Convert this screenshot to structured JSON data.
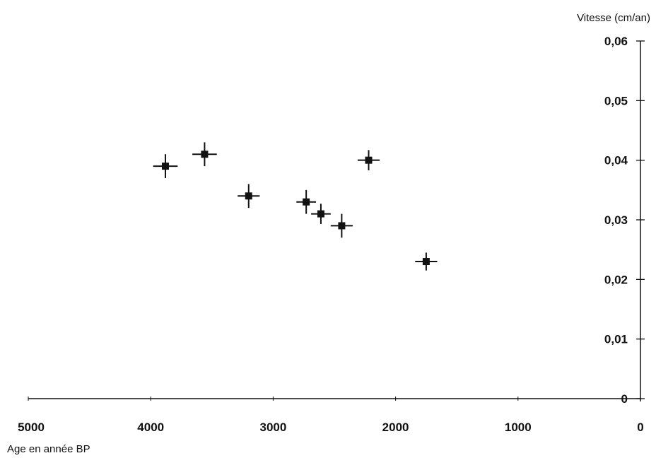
{
  "chart_data": {
    "type": "scatter",
    "xlabel": "Age en année BP",
    "ylabel": "Vitesse (cm/an)",
    "xlim": [
      5000,
      0
    ],
    "ylim": [
      0,
      0.06
    ],
    "x_reversed": true,
    "x_ticks": [
      5000,
      4000,
      3000,
      2000,
      1000,
      0
    ],
    "x_tick_labels": [
      "5000",
      "4000",
      "3000",
      "2000",
      "1000",
      "0"
    ],
    "y_ticks": [
      0,
      0.01,
      0.02,
      0.03,
      0.04,
      0.05,
      0.06
    ],
    "y_tick_labels": [
      "0",
      "0,01",
      "0,02",
      "0,03",
      "0,04",
      "0,05",
      "0,06"
    ],
    "y_axis_position": "right",
    "grid": false,
    "legend": false,
    "marker": "square-with-error-bars",
    "marker_color": "#111111",
    "points": [
      {
        "x": 3880,
        "y": 0.039,
        "x_err": 100,
        "y_err": 0.002
      },
      {
        "x": 3560,
        "y": 0.041,
        "x_err": 100,
        "y_err": 0.002
      },
      {
        "x": 3200,
        "y": 0.034,
        "x_err": 90,
        "y_err": 0.002
      },
      {
        "x": 2730,
        "y": 0.033,
        "x_err": 80,
        "y_err": 0.002
      },
      {
        "x": 2610,
        "y": 0.031,
        "x_err": 80,
        "y_err": 0.0017
      },
      {
        "x": 2440,
        "y": 0.029,
        "x_err": 90,
        "y_err": 0.002
      },
      {
        "x": 2220,
        "y": 0.04,
        "x_err": 90,
        "y_err": 0.0017
      },
      {
        "x": 1750,
        "y": 0.023,
        "x_err": 90,
        "y_err": 0.0015
      }
    ]
  }
}
